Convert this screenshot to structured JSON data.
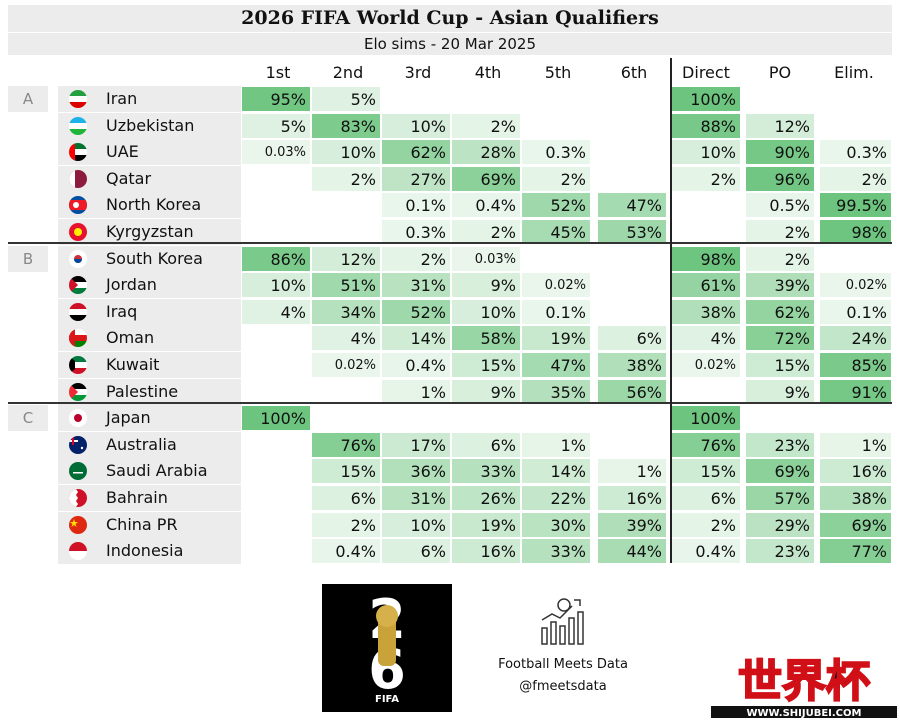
{
  "title": "2026 FIFA World Cup - Asian Qualifiers",
  "subtitle": "Elo sims - 20 Mar 2025",
  "columns": [
    "1st",
    "2nd",
    "3rd",
    "4th",
    "5th",
    "6th",
    "Direct",
    "PO",
    "Elim."
  ],
  "colors": {
    "strong": "#6cc47e",
    "light": "#eaf6ec",
    "header_bg": "#ececec"
  },
  "groups": [
    {
      "label": "A",
      "teams": [
        {
          "name": "Iran",
          "flag": "iran-flag",
          "cells": [
            "95%",
            "5%",
            "",
            "",
            "",
            "",
            "100%",
            "",
            ""
          ]
        },
        {
          "name": "Uzbekistan",
          "flag": "uzbekistan-flag",
          "cells": [
            "5%",
            "83%",
            "10%",
            "2%",
            "",
            "",
            "88%",
            "12%",
            ""
          ]
        },
        {
          "name": "UAE",
          "flag": "uae-flag",
          "cells": [
            "0.03%",
            "10%",
            "62%",
            "28%",
            "0.3%",
            "",
            "10%",
            "90%",
            "0.3%"
          ]
        },
        {
          "name": "Qatar",
          "flag": "qatar-flag",
          "cells": [
            "",
            "2%",
            "27%",
            "69%",
            "2%",
            "",
            "2%",
            "96%",
            "2%"
          ]
        },
        {
          "name": "North Korea",
          "flag": "north-korea-flag",
          "cells": [
            "",
            "",
            "0.1%",
            "0.4%",
            "52%",
            "47%",
            "",
            "0.5%",
            "99.5%"
          ]
        },
        {
          "name": "Kyrgyzstan",
          "flag": "kyrgyzstan-flag",
          "cells": [
            "",
            "",
            "0.3%",
            "2%",
            "45%",
            "53%",
            "",
            "2%",
            "98%"
          ]
        }
      ]
    },
    {
      "label": "B",
      "teams": [
        {
          "name": "South Korea",
          "flag": "south-korea-flag",
          "cells": [
            "86%",
            "12%",
            "2%",
            "0.03%",
            "",
            "",
            "98%",
            "2%",
            ""
          ]
        },
        {
          "name": "Jordan",
          "flag": "jordan-flag",
          "cells": [
            "10%",
            "51%",
            "31%",
            "9%",
            "0.02%",
            "",
            "61%",
            "39%",
            "0.02%"
          ]
        },
        {
          "name": "Iraq",
          "flag": "iraq-flag",
          "cells": [
            "4%",
            "34%",
            "52%",
            "10%",
            "0.1%",
            "",
            "38%",
            "62%",
            "0.1%"
          ]
        },
        {
          "name": "Oman",
          "flag": "oman-flag",
          "cells": [
            "",
            "4%",
            "14%",
            "58%",
            "19%",
            "6%",
            "4%",
            "72%",
            "24%"
          ]
        },
        {
          "name": "Kuwait",
          "flag": "kuwait-flag",
          "cells": [
            "",
            "0.02%",
            "0.4%",
            "15%",
            "47%",
            "38%",
            "0.02%",
            "15%",
            "85%"
          ]
        },
        {
          "name": "Palestine",
          "flag": "palestine-flag",
          "cells": [
            "",
            "",
            "1%",
            "9%",
            "35%",
            "56%",
            "",
            "9%",
            "91%"
          ]
        }
      ]
    },
    {
      "label": "C",
      "teams": [
        {
          "name": "Japan",
          "flag": "japan-flag",
          "cells": [
            "100%",
            "",
            "",
            "",
            "",
            "",
            "100%",
            "",
            ""
          ]
        },
        {
          "name": "Australia",
          "flag": "australia-flag",
          "cells": [
            "",
            "76%",
            "17%",
            "6%",
            "1%",
            "",
            "76%",
            "23%",
            "1%"
          ]
        },
        {
          "name": "Saudi Arabia",
          "flag": "saudi-arabia-flag",
          "cells": [
            "",
            "15%",
            "36%",
            "33%",
            "14%",
            "1%",
            "15%",
            "69%",
            "16%"
          ]
        },
        {
          "name": "Bahrain",
          "flag": "bahrain-flag",
          "cells": [
            "",
            "6%",
            "31%",
            "26%",
            "22%",
            "16%",
            "6%",
            "57%",
            "38%"
          ]
        },
        {
          "name": "China PR",
          "flag": "china-flag",
          "cells": [
            "",
            "2%",
            "10%",
            "19%",
            "30%",
            "39%",
            "2%",
            "29%",
            "69%"
          ]
        },
        {
          "name": "Indonesia",
          "flag": "indonesia-flag",
          "cells": [
            "",
            "0.4%",
            "6%",
            "16%",
            "33%",
            "44%",
            "0.4%",
            "23%",
            "77%"
          ]
        }
      ]
    }
  ],
  "footer": {
    "fifa_logo_text": "FIFA",
    "fifa_logo_number": "26",
    "brand_name": "Football Meets Data",
    "brand_handle": "@fmeetsdata",
    "watermark_text": "WWW.SHIJUBEI.COM",
    "watermark_chars": "世界杯"
  },
  "chart_data": {
    "type": "table",
    "title": "2026 FIFA World Cup - Asian Qualifiers",
    "subtitle": "Elo sims - 20 Mar 2025",
    "columns": [
      "1st",
      "2nd",
      "3rd",
      "4th",
      "5th",
      "6th",
      "Direct",
      "PO",
      "Elim."
    ],
    "rows": [
      {
        "group": "A",
        "team": "Iran",
        "values": [
          "95%",
          "5%",
          "",
          "",
          "",
          "",
          "100%",
          "",
          ""
        ]
      },
      {
        "group": "A",
        "team": "Uzbekistan",
        "values": [
          "5%",
          "83%",
          "10%",
          "2%",
          "",
          "",
          "88%",
          "12%",
          ""
        ]
      },
      {
        "group": "A",
        "team": "UAE",
        "values": [
          "0.03%",
          "10%",
          "62%",
          "28%",
          "0.3%",
          "",
          "10%",
          "90%",
          "0.3%"
        ]
      },
      {
        "group": "A",
        "team": "Qatar",
        "values": [
          "",
          "2%",
          "27%",
          "69%",
          "2%",
          "",
          "2%",
          "96%",
          "2%"
        ]
      },
      {
        "group": "A",
        "team": "North Korea",
        "values": [
          "",
          "",
          "0.1%",
          "0.4%",
          "52%",
          "47%",
          "",
          "0.5%",
          "99.5%"
        ]
      },
      {
        "group": "A",
        "team": "Kyrgyzstan",
        "values": [
          "",
          "",
          "0.3%",
          "2%",
          "45%",
          "53%",
          "",
          "2%",
          "98%"
        ]
      },
      {
        "group": "B",
        "team": "South Korea",
        "values": [
          "86%",
          "12%",
          "2%",
          "0.03%",
          "",
          "",
          "98%",
          "2%",
          ""
        ]
      },
      {
        "group": "B",
        "team": "Jordan",
        "values": [
          "10%",
          "51%",
          "31%",
          "9%",
          "0.02%",
          "",
          "61%",
          "39%",
          "0.02%"
        ]
      },
      {
        "group": "B",
        "team": "Iraq",
        "values": [
          "4%",
          "34%",
          "52%",
          "10%",
          "0.1%",
          "",
          "38%",
          "62%",
          "0.1%"
        ]
      },
      {
        "group": "B",
        "team": "Oman",
        "values": [
          "",
          "4%",
          "14%",
          "58%",
          "19%",
          "6%",
          "4%",
          "72%",
          "24%"
        ]
      },
      {
        "group": "B",
        "team": "Kuwait",
        "values": [
          "",
          "0.02%",
          "0.4%",
          "15%",
          "47%",
          "38%",
          "0.02%",
          "15%",
          "85%"
        ]
      },
      {
        "group": "B",
        "team": "Palestine",
        "values": [
          "",
          "",
          "1%",
          "9%",
          "35%",
          "56%",
          "",
          "9%",
          "91%"
        ]
      },
      {
        "group": "C",
        "team": "Japan",
        "values": [
          "100%",
          "",
          "",
          "",
          "",
          "",
          "100%",
          "",
          ""
        ]
      },
      {
        "group": "C",
        "team": "Australia",
        "values": [
          "",
          "76%",
          "17%",
          "6%",
          "1%",
          "",
          "76%",
          "23%",
          "1%"
        ]
      },
      {
        "group": "C",
        "team": "Saudi Arabia",
        "values": [
          "",
          "15%",
          "36%",
          "33%",
          "14%",
          "1%",
          "15%",
          "69%",
          "16%"
        ]
      },
      {
        "group": "C",
        "team": "Bahrain",
        "values": [
          "",
          "6%",
          "31%",
          "26%",
          "22%",
          "16%",
          "6%",
          "57%",
          "38%"
        ]
      },
      {
        "group": "C",
        "team": "China PR",
        "values": [
          "",
          "2%",
          "10%",
          "19%",
          "30%",
          "39%",
          "2%",
          "29%",
          "69%"
        ]
      },
      {
        "group": "C",
        "team": "Indonesia",
        "values": [
          "",
          "0.4%",
          "6%",
          "16%",
          "33%",
          "44%",
          "0.4%",
          "23%",
          "77%"
        ]
      }
    ]
  }
}
